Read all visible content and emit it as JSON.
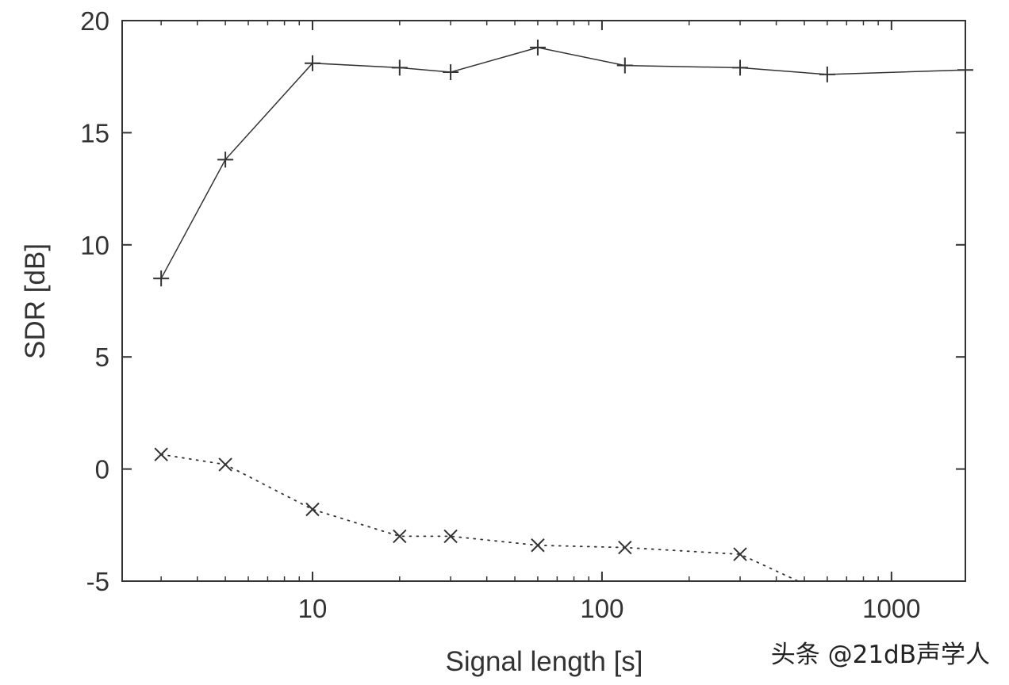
{
  "chart_data": {
    "type": "line",
    "title": "",
    "xlabel": "Signal length [s]",
    "ylabel": "SDR [dB]",
    "x_scale": "log",
    "xlim": [
      2.2,
      1800
    ],
    "ylim": [
      -5,
      20
    ],
    "x_ticks": [
      10,
      100,
      1000
    ],
    "x_tick_labels": [
      "10",
      "100",
      "1000"
    ],
    "y_ticks": [
      -5,
      0,
      5,
      10,
      15,
      20
    ],
    "y_tick_labels": [
      "-5",
      "0",
      "5",
      "10",
      "15",
      "20"
    ],
    "grid": false,
    "legend": "none",
    "series": [
      {
        "marker": "plus",
        "line_style": "solid",
        "color": "#333333",
        "x": [
          3,
          5,
          10,
          20,
          30,
          60,
          120,
          300,
          600,
          1800
        ],
        "y": [
          8.5,
          13.8,
          18.1,
          17.9,
          17.7,
          18.8,
          18.0,
          17.9,
          17.6,
          17.8
        ]
      },
      {
        "marker": "cross",
        "line_style": "dotted",
        "color": "#333333",
        "x": [
          3,
          5,
          10,
          20,
          30,
          60,
          120,
          300,
          600
        ],
        "y": [
          0.65,
          0.2,
          -1.8,
          -3.0,
          -3.0,
          -3.4,
          -3.5,
          -3.8,
          -5.6
        ]
      }
    ]
  },
  "watermark": "头条 @21dB声学人"
}
